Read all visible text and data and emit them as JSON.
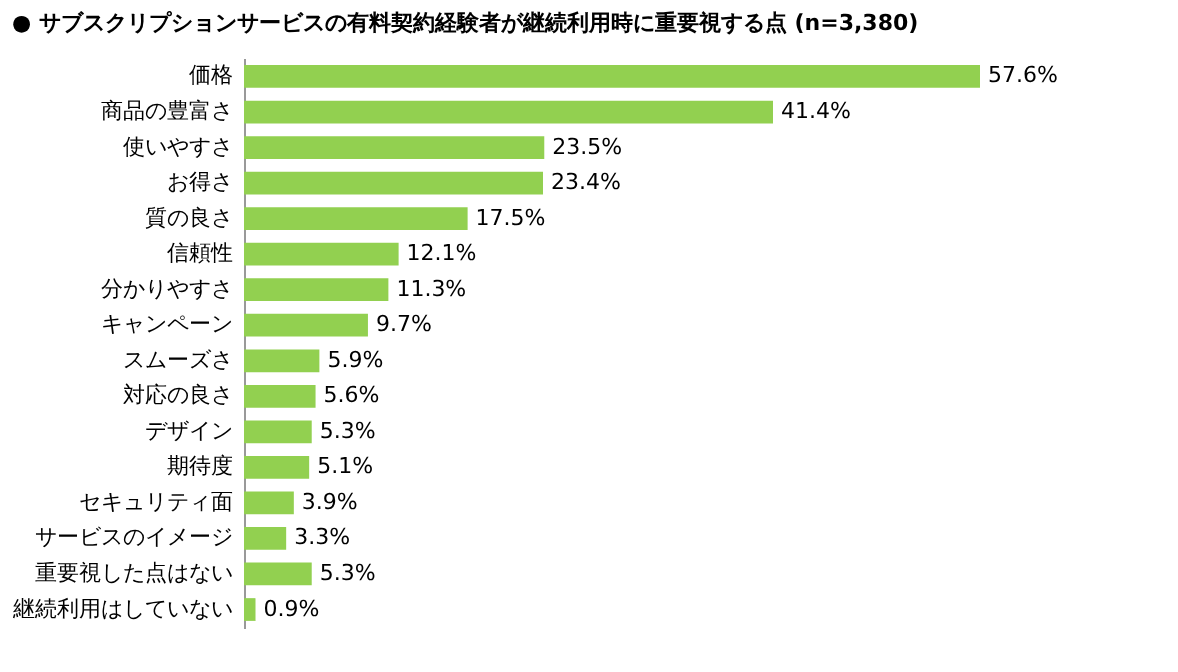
{
  "chart_data": {
    "type": "bar",
    "orientation": "horizontal",
    "title": "● サブスクリプションサービスの有料契約経験者が継続利用時に重要視する点 (n=3,380)",
    "categories": [
      "価格",
      "商品の豊富さ",
      "使いやすさ",
      "お得さ",
      "質の良さ",
      "信頼性",
      "分かりやすさ",
      "キャンペーン",
      "スムーズさ",
      "対応の良さ",
      "デザイン",
      "期待度",
      "セキュリティ面",
      "サービスのイメージ",
      "重要視した点はない",
      "継続利用はしていない"
    ],
    "values": [
      57.6,
      41.4,
      23.5,
      23.4,
      17.5,
      12.1,
      11.3,
      9.7,
      5.9,
      5.6,
      5.3,
      5.1,
      3.9,
      3.3,
      5.3,
      0.9
    ],
    "value_labels": [
      "57.6%",
      "41.4%",
      "23.5%",
      "23.4%",
      "17.5%",
      "12.1%",
      "11.3%",
      "9.7%",
      "5.9%",
      "5.6%",
      "5.3%",
      "5.1%",
      "3.9%",
      "3.3%",
      "5.3%",
      "0.9%"
    ],
    "color": "#92d050"
  }
}
